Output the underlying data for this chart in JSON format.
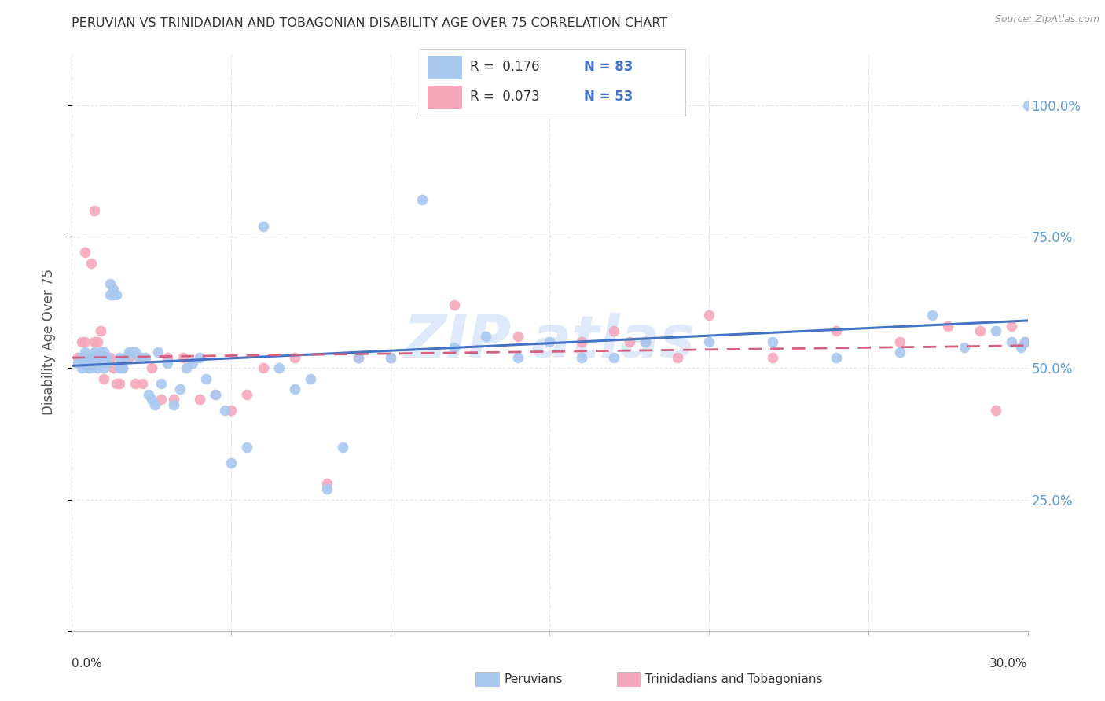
{
  "title": "PERUVIAN VS TRINIDADIAN AND TOBAGONIAN DISABILITY AGE OVER 75 CORRELATION CHART",
  "source": "Source: ZipAtlas.com",
  "ylabel": "Disability Age Over 75",
  "xlim": [
    0.0,
    0.3
  ],
  "ylim": [
    0.0,
    1.1
  ],
  "ytick_vals": [
    0.0,
    0.25,
    0.5,
    0.75,
    1.0
  ],
  "ytick_labels": [
    "",
    "25.0%",
    "50.0%",
    "75.0%",
    "100.0%"
  ],
  "xtick_vals": [
    0.0,
    0.05,
    0.1,
    0.15,
    0.2,
    0.25,
    0.3
  ],
  "legend_R1": "R =  0.176",
  "legend_N1": "N = 83",
  "legend_R2": "R =  0.073",
  "legend_N2": "N = 53",
  "blue_color": "#A8C8F0",
  "pink_color": "#F5A8BB",
  "trend_blue": "#4472C4",
  "trend_pink": "#D46080",
  "grid_color": "#D8E4F0",
  "watermark_color": "#C8DCF5",
  "peruvians_x": [
    0.002,
    0.003,
    0.003,
    0.004,
    0.004,
    0.005,
    0.005,
    0.005,
    0.006,
    0.006,
    0.006,
    0.007,
    0.007,
    0.007,
    0.008,
    0.008,
    0.008,
    0.009,
    0.009,
    0.009,
    0.01,
    0.01,
    0.01,
    0.011,
    0.011,
    0.012,
    0.012,
    0.013,
    0.013,
    0.014,
    0.015,
    0.015,
    0.016,
    0.017,
    0.018,
    0.019,
    0.02,
    0.021,
    0.022,
    0.023,
    0.024,
    0.025,
    0.026,
    0.027,
    0.028,
    0.03,
    0.032,
    0.034,
    0.036,
    0.038,
    0.04,
    0.042,
    0.045,
    0.048,
    0.05,
    0.055,
    0.06,
    0.065,
    0.07,
    0.075,
    0.08,
    0.085,
    0.09,
    0.1,
    0.11,
    0.12,
    0.13,
    0.14,
    0.15,
    0.16,
    0.17,
    0.18,
    0.2,
    0.22,
    0.24,
    0.26,
    0.27,
    0.28,
    0.29,
    0.295,
    0.298,
    0.299,
    0.3
  ],
  "peruvians_y": [
    0.51,
    0.52,
    0.5,
    0.51,
    0.53,
    0.51,
    0.5,
    0.52,
    0.51,
    0.52,
    0.5,
    0.52,
    0.51,
    0.53,
    0.52,
    0.51,
    0.5,
    0.52,
    0.51,
    0.53,
    0.5,
    0.52,
    0.53,
    0.52,
    0.51,
    0.64,
    0.66,
    0.64,
    0.65,
    0.64,
    0.52,
    0.5,
    0.5,
    0.52,
    0.53,
    0.53,
    0.53,
    0.52,
    0.52,
    0.52,
    0.45,
    0.44,
    0.43,
    0.53,
    0.47,
    0.51,
    0.43,
    0.46,
    0.5,
    0.51,
    0.52,
    0.48,
    0.45,
    0.42,
    0.32,
    0.35,
    0.77,
    0.5,
    0.46,
    0.48,
    0.27,
    0.35,
    0.52,
    0.52,
    0.82,
    0.54,
    0.56,
    0.52,
    0.55,
    0.52,
    0.52,
    0.55,
    0.55,
    0.55,
    0.52,
    0.53,
    0.6,
    0.54,
    0.57,
    0.55,
    0.54,
    0.55,
    1.0
  ],
  "trinidadian_x": [
    0.002,
    0.003,
    0.004,
    0.004,
    0.005,
    0.006,
    0.007,
    0.007,
    0.008,
    0.008,
    0.009,
    0.009,
    0.01,
    0.01,
    0.011,
    0.012,
    0.013,
    0.014,
    0.015,
    0.016,
    0.018,
    0.02,
    0.022,
    0.025,
    0.028,
    0.03,
    0.032,
    0.035,
    0.04,
    0.045,
    0.05,
    0.055,
    0.06,
    0.07,
    0.08,
    0.09,
    0.1,
    0.12,
    0.14,
    0.16,
    0.17,
    0.175,
    0.18,
    0.19,
    0.2,
    0.22,
    0.24,
    0.26,
    0.275,
    0.285,
    0.29,
    0.295,
    0.299
  ],
  "trinidadian_y": [
    0.52,
    0.55,
    0.72,
    0.55,
    0.52,
    0.7,
    0.8,
    0.55,
    0.55,
    0.52,
    0.57,
    0.52,
    0.52,
    0.48,
    0.52,
    0.52,
    0.5,
    0.47,
    0.47,
    0.5,
    0.52,
    0.47,
    0.47,
    0.5,
    0.44,
    0.52,
    0.44,
    0.52,
    0.44,
    0.45,
    0.42,
    0.45,
    0.5,
    0.52,
    0.28,
    0.52,
    0.52,
    0.62,
    0.56,
    0.55,
    0.57,
    0.55,
    0.55,
    0.52,
    0.6,
    0.52,
    0.57,
    0.55,
    0.58,
    0.57,
    0.42,
    0.58,
    0.55
  ]
}
